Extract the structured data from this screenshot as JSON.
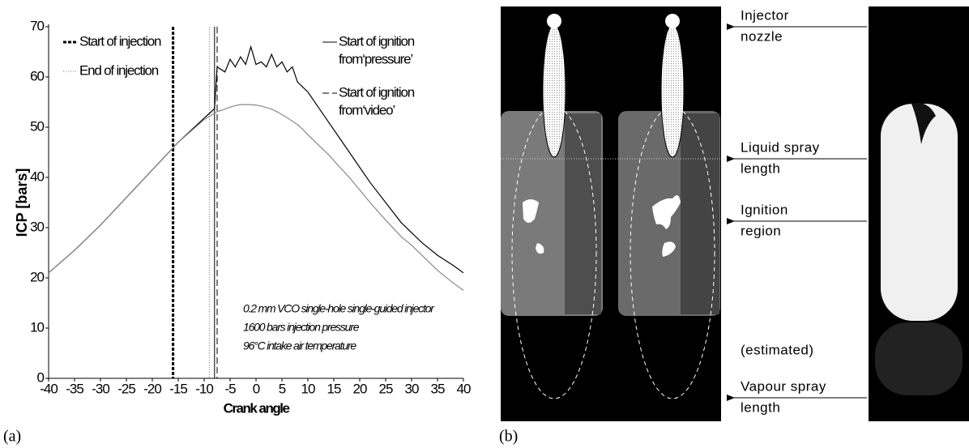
{
  "chart_data": {
    "type": "line",
    "ylabel": "ICP [bars]",
    "xlabel": "Crank angle",
    "xlim": [
      -40,
      40
    ],
    "xticks": [
      -40,
      -35,
      -30,
      -25,
      -20,
      -15,
      -10,
      -5,
      0,
      5,
      10,
      15,
      20,
      25,
      30,
      35,
      40
    ],
    "ylim": [
      0,
      70
    ],
    "yticks": [
      0,
      10,
      20,
      30,
      40,
      50,
      60,
      70
    ],
    "x": [
      -40,
      -35,
      -30,
      -25,
      -20,
      -15,
      -10,
      -8,
      -7.5,
      -6,
      -5,
      -4,
      -3,
      -2,
      -1,
      0,
      1,
      2,
      3,
      4,
      5,
      6,
      7,
      8,
      9,
      10,
      12,
      14,
      16,
      18,
      20,
      22,
      25,
      28,
      30,
      32,
      35,
      38,
      40
    ],
    "series": [
      {
        "color": "#000000",
        "values": [
          21,
          25.5,
          30.5,
          36,
          41.5,
          47,
          51.8,
          53.7,
          62,
          61,
          63.5,
          62,
          64,
          62.5,
          66,
          62.5,
          63,
          62,
          64.5,
          62,
          63,
          61,
          62,
          59,
          58,
          57,
          54,
          51,
          48,
          45,
          42,
          39,
          35,
          31,
          29,
          27,
          24.5,
          22.5,
          21
        ]
      },
      {
        "color": "#888888",
        "values": [
          21,
          25.5,
          30.5,
          36,
          41.5,
          47,
          51.5,
          52.8,
          53.1,
          53.6,
          54,
          54.3,
          54.5,
          54.5,
          54.5,
          54.4,
          54.2,
          53.9,
          53.6,
          53.1,
          52.5,
          51.9,
          51.2,
          50.5,
          49.6,
          48.5,
          46.5,
          44.5,
          42.2,
          40,
          37.5,
          35,
          31.5,
          28.2,
          26.5,
          24.5,
          21.5,
          19,
          17.5
        ]
      }
    ],
    "vlines": [
      {
        "label_lines": [
          "Start of injection"
        ],
        "x": -16,
        "color": "#000000",
        "style": "thick-dash"
      },
      {
        "label_lines": [
          "End of injection"
        ],
        "x": -9,
        "color": "#777777",
        "style": "dot"
      },
      {
        "label_lines": [
          "Start of ignition",
          "from‘pressure’"
        ],
        "x": -8,
        "color": "#000000",
        "style": "solid"
      },
      {
        "label_lines": [
          "Start of ignition",
          " from‘video’"
        ],
        "x": -7.5,
        "color": "#000000",
        "style": "dash"
      }
    ],
    "annotation_lines": [
      "0.2 mm VCO single-hole single-guided injector",
      "1600 bars injection pressure",
      "96°C intake air temperature"
    ]
  },
  "panel_b": {
    "labels": [
      [
        "Injector",
        "nozzle"
      ],
      [
        "Liquid spray",
        "length"
      ],
      [
        "Ignition",
        "region"
      ],
      [
        "(estimated)"
      ],
      [
        "Vapour spray",
        "length"
      ]
    ]
  },
  "captions": [
    "(a)",
    "(b)"
  ]
}
